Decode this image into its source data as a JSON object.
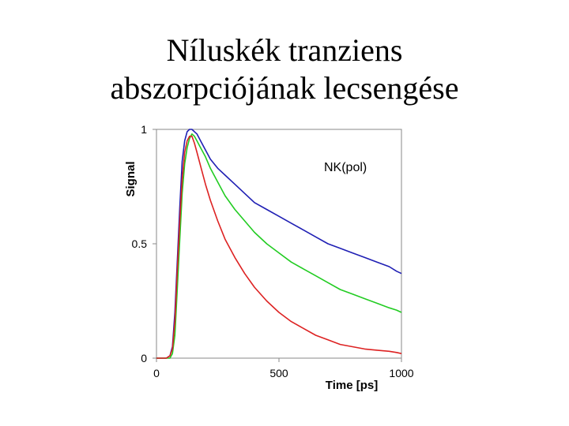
{
  "slide": {
    "title_line1": "Níluskék tranziens",
    "title_line2": "abszorpciójának lecsengése"
  },
  "chart_data": {
    "type": "line",
    "title": "",
    "xlabel": "Time [ps]",
    "ylabel": "Signal",
    "xlim": [
      0,
      1000
    ],
    "ylim": [
      0,
      1
    ],
    "x_ticks": [
      0,
      500,
      1000
    ],
    "y_ticks": [
      0,
      0.5,
      1
    ],
    "grid": false,
    "annotation": "NK(pol)",
    "series": [
      {
        "color": "#1f1fb4",
        "x": [
          0,
          40,
          55,
          65,
          75,
          85,
          95,
          105,
          115,
          125,
          135,
          145,
          155,
          165,
          180,
          200,
          220,
          250,
          280,
          320,
          360,
          400,
          450,
          500,
          550,
          600,
          650,
          700,
          750,
          800,
          850,
          900,
          950,
          980,
          1000
        ],
        "y": [
          0,
          0,
          0.01,
          0.05,
          0.2,
          0.42,
          0.66,
          0.86,
          0.95,
          0.99,
          1.0,
          1.0,
          0.99,
          0.98,
          0.95,
          0.91,
          0.87,
          0.83,
          0.8,
          0.76,
          0.72,
          0.68,
          0.65,
          0.62,
          0.59,
          0.56,
          0.53,
          0.5,
          0.48,
          0.46,
          0.44,
          0.42,
          0.4,
          0.38,
          0.37
        ]
      },
      {
        "color": "#22cc22",
        "x": [
          0,
          40,
          55,
          65,
          75,
          85,
          95,
          105,
          115,
          125,
          135,
          145,
          155,
          165,
          180,
          200,
          220,
          250,
          280,
          320,
          360,
          400,
          450,
          500,
          550,
          600,
          650,
          700,
          750,
          800,
          850,
          900,
          950,
          980,
          1000
        ],
        "y": [
          0,
          0,
          0.0,
          0.02,
          0.1,
          0.3,
          0.52,
          0.72,
          0.85,
          0.92,
          0.96,
          0.98,
          0.97,
          0.95,
          0.92,
          0.88,
          0.83,
          0.77,
          0.71,
          0.65,
          0.6,
          0.55,
          0.5,
          0.46,
          0.42,
          0.39,
          0.36,
          0.33,
          0.3,
          0.28,
          0.26,
          0.24,
          0.22,
          0.21,
          0.2
        ]
      },
      {
        "color": "#dd2222",
        "x": [
          0,
          40,
          55,
          65,
          75,
          85,
          95,
          105,
          115,
          125,
          135,
          145,
          155,
          165,
          180,
          200,
          220,
          250,
          280,
          320,
          360,
          400,
          450,
          500,
          550,
          600,
          650,
          700,
          750,
          800,
          850,
          900,
          950,
          980,
          1000
        ],
        "y": [
          0,
          0,
          0.01,
          0.04,
          0.16,
          0.38,
          0.6,
          0.78,
          0.9,
          0.95,
          0.97,
          0.97,
          0.94,
          0.9,
          0.84,
          0.76,
          0.69,
          0.6,
          0.52,
          0.44,
          0.37,
          0.31,
          0.25,
          0.2,
          0.16,
          0.13,
          0.1,
          0.08,
          0.06,
          0.05,
          0.04,
          0.035,
          0.03,
          0.025,
          0.02
        ]
      }
    ]
  }
}
